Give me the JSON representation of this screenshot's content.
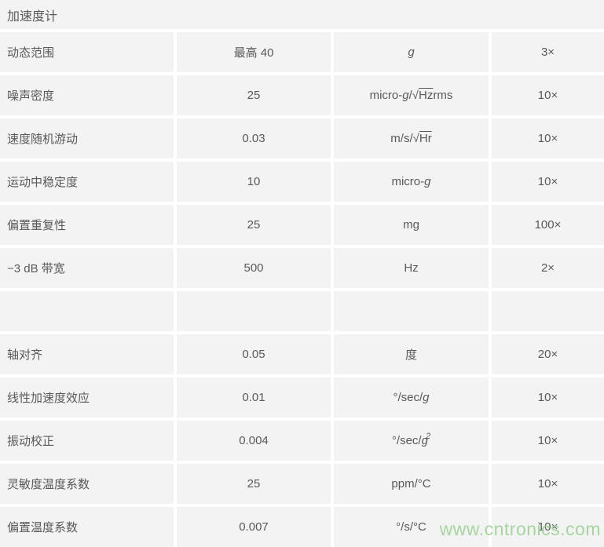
{
  "page": {
    "title": "加速度计",
    "watermark": "www.cntronics.com"
  },
  "colors": {
    "cell_background": "#f3f3f3",
    "gap_background": "#ffffff",
    "text": "#58595b",
    "watermark_green": "#a5d6a0"
  },
  "table": {
    "rows": [
      {
        "param": "动态范围",
        "value": "最高 40",
        "unit": [
          {
            "text": "g",
            "style": "i"
          }
        ],
        "multiplier": "3×"
      },
      {
        "param": "噪声密度",
        "value": "25",
        "unit": [
          {
            "text": "micro-",
            "style": ""
          },
          {
            "text": "g",
            "style": "i"
          },
          {
            "text": "/√",
            "style": ""
          },
          {
            "text": "Hz",
            "style": "over"
          },
          {
            "text": " rms",
            "style": ""
          }
        ],
        "multiplier": "10×"
      },
      {
        "param": "速度随机游动",
        "value": "0.03",
        "unit": [
          {
            "text": "m/s/√",
            "style": ""
          },
          {
            "text": "Hr",
            "style": "over"
          }
        ],
        "multiplier": "10×"
      },
      {
        "param": "运动中稳定度",
        "value": "10",
        "unit": [
          {
            "text": "micro-",
            "style": ""
          },
          {
            "text": "g",
            "style": "i"
          }
        ],
        "multiplier": "10×"
      },
      {
        "param": "偏置重复性",
        "value": "25",
        "unit": [
          {
            "text": "mg",
            "style": ""
          }
        ],
        "multiplier": "100×"
      },
      {
        "param": "−3 dB 带宽",
        "value": "500",
        "unit": [
          {
            "text": "Hz",
            "style": ""
          }
        ],
        "multiplier": "2×"
      },
      {
        "param": "",
        "value": "",
        "unit": [],
        "multiplier": ""
      },
      {
        "param": "轴对齐",
        "value": "0.05",
        "unit": [
          {
            "text": "度",
            "style": ""
          }
        ],
        "multiplier": "20×"
      },
      {
        "param": "线性加速度效应",
        "value": "0.01",
        "unit": [
          {
            "text": "°/sec/",
            "style": ""
          },
          {
            "text": "g",
            "style": "i"
          }
        ],
        "multiplier": "10×"
      },
      {
        "param": "振动校正",
        "value": "0.004",
        "unit": [
          {
            "text": "°/sec/",
            "style": ""
          },
          {
            "text": "g",
            "style": "i"
          },
          {
            "text": "2",
            "style": "sup"
          }
        ],
        "multiplier": "10×"
      },
      {
        "param": "灵敏度温度系数",
        "value": "25",
        "unit": [
          {
            "text": "ppm/°C",
            "style": ""
          }
        ],
        "multiplier": "10×"
      },
      {
        "param": "偏置温度系数",
        "value": "0.007",
        "unit": [
          {
            "text": "°/s/°C",
            "style": ""
          }
        ],
        "multiplier": "10×"
      }
    ]
  }
}
